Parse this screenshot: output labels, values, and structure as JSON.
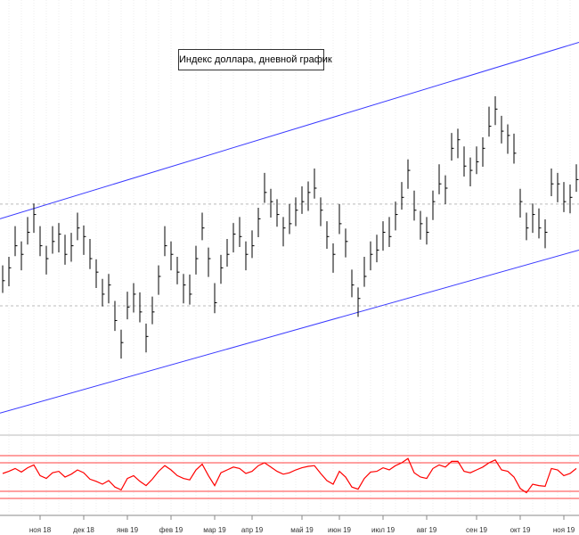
{
  "chart_data": {
    "type": "ohlc",
    "title": "Индекс доллара, дневной график",
    "color": "#000000",
    "categories": [
      null,
      null,
      null,
      null,
      null,
      null,
      "ноя 18",
      null,
      null,
      null,
      null,
      null,
      null,
      "дек 18",
      null,
      null,
      null,
      null,
      null,
      null,
      "янв 19",
      null,
      null,
      null,
      null,
      null,
      null,
      "фев 19",
      null,
      null,
      null,
      null,
      null,
      null,
      "мар 19",
      null,
      null,
      null,
      null,
      null,
      "апр 19",
      null,
      null,
      null,
      null,
      null,
      null,
      null,
      "май 19",
      null,
      null,
      null,
      null,
      null,
      "июн 19",
      null,
      null,
      null,
      null,
      null,
      null,
      "июл 19",
      null,
      null,
      null,
      null,
      null,
      null,
      "авг 19",
      null,
      null,
      null,
      null,
      null,
      null,
      null,
      "сен 19",
      null,
      null,
      null,
      null,
      null,
      null,
      "окт 19",
      null,
      null,
      null,
      null,
      null,
      null,
      "ноя 19",
      null,
      null
    ],
    "high": [
      96.67,
      96.81,
      97.31,
      97.06,
      97.46,
      97.68,
      97.31,
      96.99,
      97.31,
      97.36,
      97.17,
      97.2,
      97.53,
      97.32,
      97.1,
      96.77,
      96.45,
      96.53,
      96.09,
      95.62,
      96.24,
      96.38,
      96.23,
      95.72,
      96.16,
      96.67,
      97.31,
      97.06,
      96.81,
      96.53,
      96.52,
      96.99,
      97.53,
      96.96,
      96.38,
      96.84,
      97.1,
      97.36,
      97.46,
      97.06,
      97.24,
      97.61,
      98.18,
      97.92,
      97.75,
      97.46,
      97.67,
      97.78,
      97.96,
      98.04,
      98.25,
      97.78,
      97.39,
      97.03,
      97.67,
      97.27,
      96.6,
      96.31,
      96.81,
      97.06,
      97.17,
      97.39,
      97.46,
      97.71,
      98.03,
      98.4,
      97.89,
      97.56,
      97.46,
      97.89,
      98.32,
      98.14,
      98.83,
      98.9,
      98.61,
      98.43,
      98.61,
      98.76,
      99.26,
      99.43,
      99.11,
      98.97,
      98.82,
      97.92,
      97.53,
      97.68,
      97.6,
      97.42,
      98.25,
      98.18,
      98.03,
      97.99,
      98.32
    ],
    "low": [
      96.22,
      96.33,
      96.82,
      96.59,
      97.01,
      97.2,
      96.82,
      96.52,
      96.86,
      96.88,
      96.68,
      96.73,
      97.08,
      96.84,
      96.61,
      96.3,
      96.0,
      96.05,
      95.6,
      95.15,
      95.79,
      95.9,
      95.74,
      95.25,
      95.71,
      96.19,
      96.82,
      96.59,
      96.36,
      96.05,
      96.03,
      96.52,
      97.08,
      96.48,
      95.89,
      96.37,
      96.65,
      96.88,
      96.97,
      96.59,
      96.79,
      97.13,
      97.69,
      97.45,
      97.3,
      96.98,
      97.18,
      97.31,
      97.51,
      97.56,
      97.76,
      97.31,
      96.94,
      96.55,
      97.18,
      96.8,
      96.15,
      95.83,
      96.32,
      96.59,
      96.72,
      96.91,
      96.97,
      97.24,
      97.58,
      97.92,
      97.4,
      97.09,
      97.01,
      97.41,
      97.83,
      97.67,
      98.38,
      98.42,
      98.12,
      97.96,
      98.16,
      98.28,
      98.77,
      98.96,
      98.66,
      98.49,
      98.33,
      97.45,
      97.08,
      97.2,
      97.11,
      96.95,
      97.8,
      97.7,
      97.54,
      97.52,
      97.87
    ],
    "close": [
      96.42,
      96.63,
      96.99,
      96.85,
      97.21,
      97.5,
      96.99,
      96.78,
      97.06,
      97.18,
      96.85,
      96.99,
      97.28,
      97.14,
      96.78,
      96.56,
      96.2,
      96.35,
      95.77,
      95.41,
      95.99,
      96.2,
      95.91,
      95.51,
      95.91,
      96.49,
      96.99,
      96.85,
      96.56,
      96.35,
      96.2,
      96.78,
      97.28,
      96.78,
      96.06,
      96.63,
      96.85,
      97.18,
      97.14,
      96.85,
      96.99,
      97.43,
      97.86,
      97.71,
      97.5,
      97.28,
      97.35,
      97.57,
      97.71,
      97.86,
      97.93,
      97.57,
      97.14,
      96.85,
      97.35,
      97.06,
      96.35,
      96.13,
      96.49,
      96.85,
      96.92,
      97.21,
      97.14,
      97.5,
      97.78,
      98.22,
      97.57,
      97.35,
      97.21,
      97.71,
      98.0,
      97.93,
      98.58,
      98.72,
      98.29,
      98.22,
      98.36,
      98.58,
      98.94,
      99.22,
      98.86,
      98.79,
      98.5,
      97.71,
      97.28,
      97.5,
      97.28,
      97.21,
      98.0,
      98.0,
      97.71,
      97.78,
      98.07
    ],
    "ylim": [
      93.9,
      101
    ],
    "hlines": [
      97.67,
      96.01
    ],
    "trendlines": [
      {
        "color": "#3a3aff",
        "values": [
          97.43,
          100.31
        ]
      },
      {
        "color": "#3a3aff",
        "values": [
          94.26,
          96.92
        ]
      }
    ],
    "oscillator": {
      "color": "#ff0000",
      "ylim": [
        0,
        100
      ],
      "levels": [
        20,
        30,
        70,
        80
      ],
      "values": [
        55,
        58,
        62,
        57,
        63,
        67,
        52,
        48,
        56,
        58,
        50,
        54,
        60,
        56,
        47,
        44,
        40,
        45,
        36,
        32,
        48,
        52,
        44,
        38,
        47,
        58,
        66,
        60,
        52,
        48,
        46,
        60,
        68,
        52,
        38,
        56,
        60,
        64,
        62,
        55,
        58,
        66,
        70,
        64,
        58,
        54,
        56,
        60,
        63,
        65,
        66,
        55,
        45,
        40,
        58,
        50,
        36,
        33,
        48,
        57,
        58,
        63,
        60,
        66,
        70,
        76,
        56,
        50,
        48,
        62,
        67,
        64,
        72,
        72,
        58,
        56,
        60,
        64,
        70,
        74,
        60,
        58,
        50,
        34,
        28,
        40,
        38,
        37,
        62,
        60,
        52,
        55,
        62
      ]
    }
  }
}
